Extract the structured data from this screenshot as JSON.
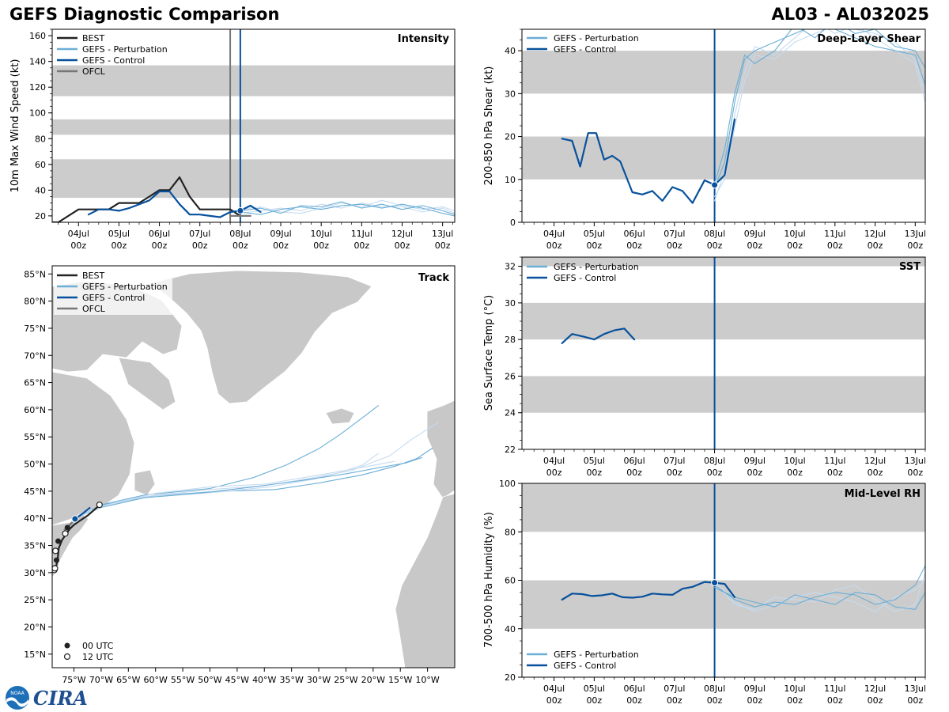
{
  "header": {
    "title": "GEFS Diagnostic Comparison",
    "storm_id": "AL03 - AL032025"
  },
  "logo": {
    "text": "CIRA",
    "badge_text": "NOAA"
  },
  "colors": {
    "best": "#222222",
    "perturbation": "#6baed6",
    "perturbation_light": "#c6dbef",
    "control": "#08519c",
    "ofcl": "#777777",
    "band": "#cccccc",
    "land": "#c8c8c8"
  },
  "time_labels": {
    "days": [
      "04Jul",
      "05Jul",
      "06Jul",
      "07Jul",
      "08Jul",
      "09Jul",
      "10Jul",
      "11Jul",
      "12Jul",
      "13Jul"
    ],
    "hour": "00z"
  },
  "legend": {
    "best": "BEST",
    "perturbation": "GEFS - Perturbation",
    "control": "GEFS - Control",
    "ofcl": "OFCL",
    "utc00": "00 UTC",
    "utc12": "12 UTC"
  },
  "chart_data": [
    {
      "id": "intensity",
      "type": "line",
      "title": "Intensity",
      "ylabel": "10m Max Wind Speed (kt)",
      "xlim": [
        -0.65,
        9.3
      ],
      "ylim": [
        15,
        165
      ],
      "yticks": [
        20,
        40,
        60,
        80,
        100,
        120,
        140,
        160
      ],
      "bands": [
        [
          34,
          64
        ],
        [
          83,
          95
        ],
        [
          113,
          137
        ]
      ],
      "vlines": [
        {
          "x": 3.75,
          "color": "ofcl"
        },
        {
          "x": 4.0,
          "color": "control"
        }
      ],
      "series": [
        {
          "name": "BEST",
          "color": "best",
          "width": 2.2,
          "x": [
            -0.75,
            -0.5,
            0,
            0.5,
            0.75,
            1,
            1.25,
            1.5,
            1.75,
            2,
            2.25,
            2.5,
            2.75,
            3,
            3.25,
            3.5,
            3.75,
            4.0
          ],
          "y": [
            15,
            15,
            25,
            25,
            25,
            30,
            30,
            30,
            35,
            40,
            40,
            50,
            35,
            25,
            25,
            25,
            25,
            20
          ]
        },
        {
          "name": "OFCL",
          "color": "ofcl",
          "width": 2.2,
          "x": [
            3.75,
            4.0,
            4.25
          ],
          "y": [
            20,
            20,
            20
          ]
        },
        {
          "name": "GEFS - Control",
          "color": "control",
          "width": 2.2,
          "marker_at": 4.0,
          "x": [
            0.25,
            0.5,
            0.75,
            1,
            1.25,
            1.5,
            1.75,
            2,
            2.25,
            2.5,
            2.75,
            3,
            3.25,
            3.5,
            3.75,
            4,
            4.25,
            4.5
          ],
          "y": [
            21,
            25,
            25,
            24,
            26,
            29,
            32,
            39,
            39,
            29,
            21,
            21,
            20,
            19,
            23,
            24,
            28,
            23
          ]
        },
        {
          "name": "GEFS - Perturbation",
          "color": "perturbation",
          "width": 1.1,
          "x": [
            4,
            4.5,
            5,
            5.5,
            6,
            6.5,
            7,
            7.5,
            8,
            8.5,
            9,
            9.3
          ],
          "y": [
            24,
            26,
            22,
            28,
            27,
            31,
            26,
            29,
            25,
            28,
            24,
            21
          ]
        },
        {
          "name": "GEFS - Perturbation",
          "color": "perturbation_light",
          "width": 1.1,
          "x": [
            4,
            4.5,
            5,
            5.5,
            6,
            6.5,
            7,
            7.5,
            8,
            8.5,
            9,
            9.3
          ],
          "y": [
            22,
            24,
            26,
            24,
            29,
            26,
            30,
            27,
            27,
            23,
            26,
            22
          ]
        },
        {
          "name": "GEFS - Perturbation",
          "color": "perturbation",
          "width": 1.1,
          "x": [
            4,
            4.5,
            5,
            5.5,
            6,
            6.5,
            7,
            7.5,
            8,
            8.5,
            9,
            9.3
          ],
          "y": [
            23,
            21,
            25,
            27,
            25,
            28,
            29,
            26,
            29,
            26,
            22,
            20
          ]
        },
        {
          "name": "GEFS - Perturbation",
          "color": "perturbation_light",
          "width": 1.1,
          "x": [
            4,
            4.5,
            5,
            5.5,
            6,
            6.5,
            7,
            7.5,
            8,
            8.5,
            9,
            9.3
          ],
          "y": [
            25,
            27,
            23,
            22,
            26,
            30,
            27,
            32,
            28,
            25,
            27,
            24
          ]
        }
      ]
    },
    {
      "id": "shear",
      "type": "line",
      "title": "Deep-Layer Shear",
      "ylabel": "200-850 hPa Shear (kt)",
      "xlim": [
        -0.8,
        9.25
      ],
      "ylim": [
        0,
        45
      ],
      "yticks": [
        0,
        10,
        20,
        30,
        40
      ],
      "bands": [
        [
          10,
          20
        ],
        [
          30,
          40
        ]
      ],
      "vlines": [
        {
          "x": 4.0,
          "color": "control"
        }
      ],
      "series": [
        {
          "name": "GEFS - Control",
          "color": "control",
          "width": 2.2,
          "marker_at": 4.0,
          "x": [
            0.2,
            0.45,
            0.65,
            0.85,
            1.05,
            1.25,
            1.45,
            1.65,
            1.95,
            2.2,
            2.45,
            2.7,
            2.95,
            3.2,
            3.45,
            3.75,
            4.0,
            4.25,
            4.5
          ],
          "y": [
            19.5,
            19.0,
            13.0,
            20.8,
            20.8,
            14.6,
            15.5,
            14.2,
            7.0,
            6.5,
            7.3,
            5.0,
            8.2,
            7.3,
            4.5,
            9.8,
            8.7,
            11,
            24
          ]
        },
        {
          "name": "GEFS - Perturbation",
          "color": "perturbation",
          "width": 1.1,
          "x": [
            4,
            4.25,
            4.5,
            4.75,
            5,
            5.5,
            6,
            6.5,
            7,
            7.5,
            8,
            8.5,
            9,
            9.25
          ],
          "y": [
            8,
            14,
            28,
            38,
            40,
            42,
            44,
            46,
            45,
            43,
            41,
            40,
            39,
            32
          ]
        },
        {
          "name": "GEFS - Perturbation",
          "color": "perturbation_light",
          "width": 1.1,
          "x": [
            4,
            4.25,
            4.5,
            4.75,
            5,
            5.5,
            6,
            6.5,
            7,
            7.5,
            8,
            8.5,
            9,
            9.25
          ],
          "y": [
            6,
            10,
            22,
            33,
            39,
            38,
            42,
            44,
            46,
            45,
            44,
            42,
            38,
            30
          ]
        },
        {
          "name": "GEFS - Perturbation",
          "color": "perturbation",
          "width": 1.1,
          "x": [
            4,
            4.25,
            4.5,
            4.75,
            5,
            5.5,
            6,
            6.5,
            7,
            7.5,
            8,
            8.5,
            9,
            9.25
          ],
          "y": [
            9,
            17,
            30,
            39,
            37,
            40,
            46,
            43,
            47,
            44,
            45,
            41,
            40,
            36
          ]
        },
        {
          "name": "GEFS - Perturbation",
          "color": "perturbation_light",
          "width": 1.1,
          "x": [
            4,
            4.25,
            4.5,
            4.75,
            5,
            5.5,
            6,
            6.5,
            7,
            7.5,
            8,
            8.5,
            9,
            9.25
          ],
          "y": [
            5,
            12,
            25,
            35,
            41,
            39,
            43,
            47,
            44,
            46,
            43,
            40,
            37,
            28
          ]
        }
      ]
    },
    {
      "id": "sst",
      "type": "line",
      "title": "SST",
      "ylabel": "Sea Surface Temp (°C)",
      "xlim": [
        -0.8,
        9.25
      ],
      "ylim": [
        22,
        32.5
      ],
      "yticks": [
        22,
        24,
        26,
        28,
        30,
        32
      ],
      "bands": [
        [
          24,
          26
        ],
        [
          28,
          30
        ],
        [
          32,
          34
        ]
      ],
      "vlines": [
        {
          "x": 4.0,
          "color": "control"
        }
      ],
      "series": [
        {
          "name": "GEFS - Control",
          "color": "control",
          "width": 2.2,
          "x": [
            0.2,
            0.45,
            0.75,
            1.0,
            1.25,
            1.5,
            1.75,
            2.0
          ],
          "y": [
            27.8,
            28.3,
            28.15,
            28.0,
            28.3,
            28.5,
            28.6,
            28.0
          ]
        }
      ]
    },
    {
      "id": "rh",
      "type": "line",
      "title": "Mid-Level RH",
      "ylabel": "700-500 hPa Humidity (%)",
      "xlim": [
        -0.8,
        9.25
      ],
      "ylim": [
        20,
        100
      ],
      "yticks": [
        20,
        40,
        60,
        80,
        100
      ],
      "bands": [
        [
          40,
          60
        ],
        [
          80,
          100
        ]
      ],
      "vlines": [
        {
          "x": 4.0,
          "color": "control"
        }
      ],
      "series": [
        {
          "name": "GEFS - Control",
          "color": "control",
          "width": 2.2,
          "marker_at": 4.0,
          "x": [
            0.2,
            0.45,
            0.7,
            0.95,
            1.2,
            1.45,
            1.7,
            1.95,
            2.2,
            2.45,
            2.7,
            2.95,
            3.2,
            3.45,
            3.75,
            4.0,
            4.25,
            4.5
          ],
          "y": [
            52,
            54.5,
            54.3,
            53.5,
            53.8,
            54.5,
            53,
            52.8,
            53.2,
            54.5,
            54.2,
            54,
            56.5,
            57.3,
            59.3,
            59,
            58.5,
            53
          ]
        },
        {
          "name": "GEFS - Perturbation",
          "color": "perturbation",
          "width": 1.1,
          "x": [
            4,
            4.5,
            5,
            5.5,
            6,
            6.5,
            7,
            7.5,
            8,
            8.5,
            9,
            9.25
          ],
          "y": [
            58,
            52,
            49,
            51,
            50,
            53,
            55,
            54,
            50,
            52,
            58,
            66
          ]
        },
        {
          "name": "GEFS - Perturbation",
          "color": "perturbation_light",
          "width": 1.1,
          "x": [
            4,
            4.5,
            5,
            5.5,
            6,
            6.5,
            7,
            7.5,
            8,
            8.5,
            9,
            9.25
          ],
          "y": [
            59,
            50,
            48,
            53,
            52,
            51,
            56,
            58,
            52,
            47,
            50,
            63
          ]
        },
        {
          "name": "GEFS - Perturbation",
          "color": "perturbation",
          "width": 1.1,
          "x": [
            4,
            4.5,
            5,
            5.5,
            6,
            6.5,
            7,
            7.5,
            8,
            8.5,
            9,
            9.25
          ],
          "y": [
            57,
            53,
            51,
            49,
            54,
            52,
            50,
            55,
            54,
            49,
            48,
            55
          ]
        },
        {
          "name": "GEFS - Perturbation",
          "color": "perturbation_light",
          "width": 1.1,
          "x": [
            4,
            4.5,
            5,
            5.5,
            6,
            6.5,
            7,
            7.5,
            8,
            8.5,
            9,
            9.25
          ],
          "y": [
            60,
            51,
            47,
            50,
            53,
            55,
            53,
            51,
            47,
            53,
            56,
            60
          ]
        }
      ]
    },
    {
      "id": "track",
      "type": "map",
      "title": "Track",
      "lon_range": [
        -79,
        -5
      ],
      "lat_range": [
        12.5,
        86.5
      ],
      "lon_ticks": [
        -75,
        -70,
        -65,
        -60,
        -55,
        -50,
        -45,
        -40,
        -35,
        -30,
        -25,
        -20,
        -15,
        -10
      ],
      "lon_tick_labels": [
        "75°W",
        "70°W",
        "65°W",
        "60°W",
        "55°W",
        "50°W",
        "45°W",
        "40°W",
        "35°W",
        "30°W",
        "25°W",
        "20°W",
        "15°W",
        "10°W"
      ],
      "lat_ticks": [
        15,
        20,
        25,
        30,
        35,
        40,
        45,
        50,
        55,
        60,
        65,
        70,
        75,
        80,
        85
      ],
      "lat_tick_labels": [
        "15°N",
        "20°N",
        "25°N",
        "30°N",
        "35°N",
        "40°N",
        "45°N",
        "50°N",
        "55°N",
        "60°N",
        "65°N",
        "70°N",
        "75°N",
        "80°N",
        "85°N"
      ],
      "best_track": {
        "lon": [
          -78.8,
          -78.6,
          -78.2,
          -78.0,
          -77.8,
          -77.2,
          -76.5,
          -75.8,
          -75.0,
          -74.0,
          -72.5,
          -71.0,
          -70.2
        ],
        "lat": [
          30.2,
          30.5,
          31.5,
          32.5,
          34.5,
          36.0,
          37.0,
          38.0,
          38.8,
          39.5,
          40.5,
          41.8,
          42.5
        ]
      },
      "best_00utc": [
        [
          -78.2,
          32.3
        ],
        [
          -77.9,
          35.8
        ],
        [
          -76.2,
          38.3
        ]
      ],
      "best_12utc": [
        [
          -78.6,
          30.5
        ],
        [
          -78.5,
          30.8
        ],
        [
          -78.4,
          34.0
        ],
        [
          -76.6,
          37.2
        ],
        [
          -70.3,
          42.5
        ]
      ],
      "ofcl_track": {
        "lon": [
          -76.8,
          -76.0,
          -75.3
        ],
        "lat": [
          37.8,
          38.5,
          39.3
        ]
      },
      "control_track": {
        "lon": [
          -74.8,
          -73.5,
          -72.0
        ],
        "lat": [
          39.9,
          40.8,
          42.0
        ]
      },
      "perturbation_tracks": [
        {
          "lon": [
            -74.8,
            -70,
            -62,
            -50,
            -42,
            -36,
            -30,
            -26,
            -22,
            -19
          ],
          "lat": [
            40,
            42.5,
            44.3,
            45.5,
            47.5,
            49.8,
            52.8,
            55.5,
            58.5,
            60.8
          ]
        },
        {
          "lon": [
            -74.8,
            -70,
            -62,
            -50,
            -40,
            -32,
            -24,
            -17,
            -13,
            -8
          ],
          "lat": [
            40,
            42.3,
            44.0,
            45.3,
            46,
            47.3,
            48.8,
            51.5,
            54.5,
            57.7
          ]
        },
        {
          "lon": [
            -74.8,
            -69,
            -60,
            -48,
            -38,
            -30,
            -22,
            -16,
            -12,
            -9
          ],
          "lat": [
            40,
            42.6,
            44.2,
            45,
            45.3,
            46.5,
            48,
            49.6,
            51,
            53
          ]
        },
        {
          "lon": [
            -74.8,
            -70,
            -61,
            -49,
            -39,
            -31,
            -26,
            -22,
            -19
          ],
          "lat": [
            40,
            42.2,
            44.1,
            44.8,
            45.8,
            47.2,
            48.5,
            49.8,
            52
          ]
        },
        {
          "lon": [
            -74.8,
            -70,
            -62,
            -52,
            -42,
            -33,
            -25,
            -18,
            -14,
            -11
          ],
          "lat": [
            40,
            42,
            43.8,
            44.6,
            45.8,
            47,
            48.2,
            49.5,
            50.2,
            51.2
          ]
        },
        {
          "lon": [
            -74.8,
            -69,
            -60,
            -50,
            -40,
            -31,
            -23,
            -16
          ],
          "lat": [
            40,
            42.5,
            44.6,
            45.8,
            46.3,
            47.8,
            49.2,
            50.5
          ]
        }
      ]
    }
  ]
}
